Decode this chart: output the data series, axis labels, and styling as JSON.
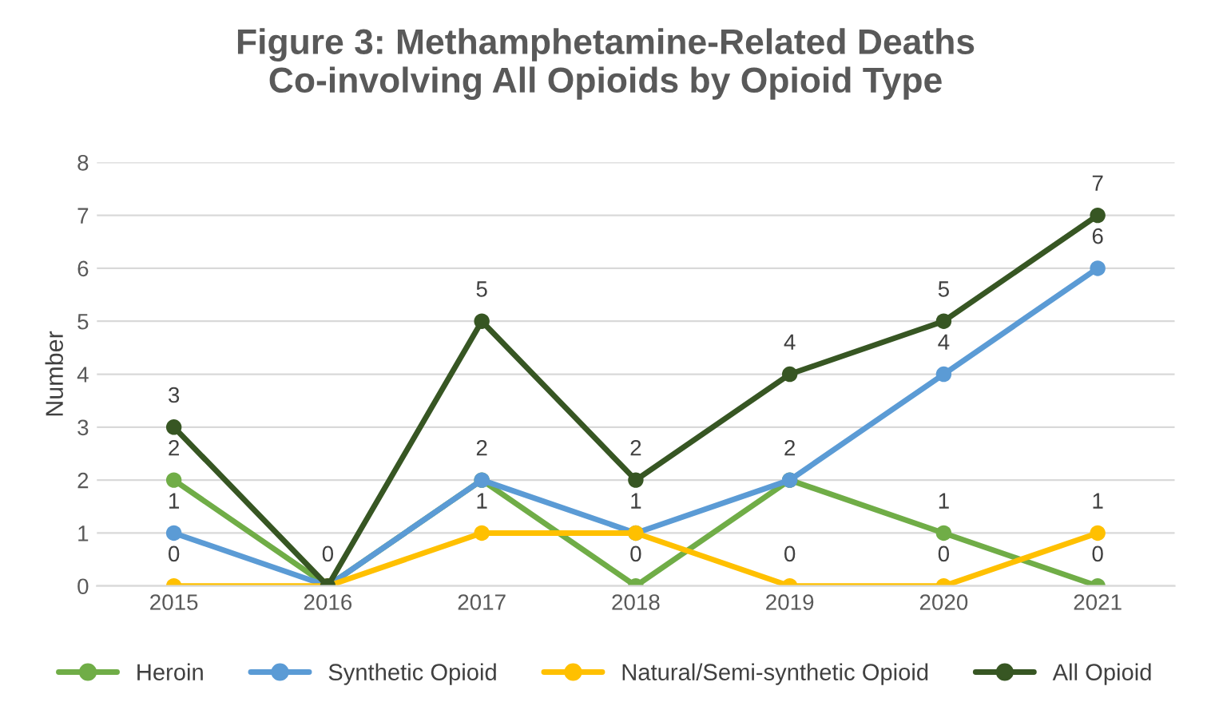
{
  "chart_data": {
    "type": "line",
    "title": "Figure 3: Methamphetamine-Related Deaths\nCo-involving All Opioids by Opioid Type",
    "ylabel": "Number",
    "categories": [
      "2015",
      "2016",
      "2017",
      "2018",
      "2019",
      "2020",
      "2021"
    ],
    "series": [
      {
        "name": "Heroin",
        "color": "#70ad47",
        "values": [
          2,
          0,
          2,
          0,
          2,
          1,
          0
        ],
        "value_labels": [
          "2",
          "0",
          "2",
          "0",
          "2",
          "1",
          "0"
        ]
      },
      {
        "name": "Synthetic Opioid",
        "color": "#5b9bd5",
        "values": [
          1,
          0,
          2,
          1,
          2,
          4,
          6
        ],
        "value_labels": [
          "1",
          null,
          null,
          "1",
          null,
          "4",
          "6"
        ]
      },
      {
        "name": "Natural/Semi-synthetic Opioid",
        "color": "#ffc000",
        "values": [
          0,
          0,
          1,
          1,
          0,
          0,
          1
        ],
        "value_labels": [
          "0",
          null,
          "1",
          null,
          "0",
          "0",
          "1"
        ]
      },
      {
        "name": "All Opioid",
        "color": "#375623",
        "values": [
          3,
          0,
          5,
          2,
          4,
          5,
          7
        ],
        "value_labels": [
          "3",
          null,
          "5",
          "2",
          "4",
          "5",
          "7"
        ]
      }
    ],
    "ylim": [
      0,
      8
    ],
    "yticks": [
      0,
      1,
      2,
      3,
      4,
      5,
      6,
      7,
      8
    ],
    "grid": "y",
    "legend": "bottom",
    "marker": "circle",
    "line_style": "solid"
  }
}
